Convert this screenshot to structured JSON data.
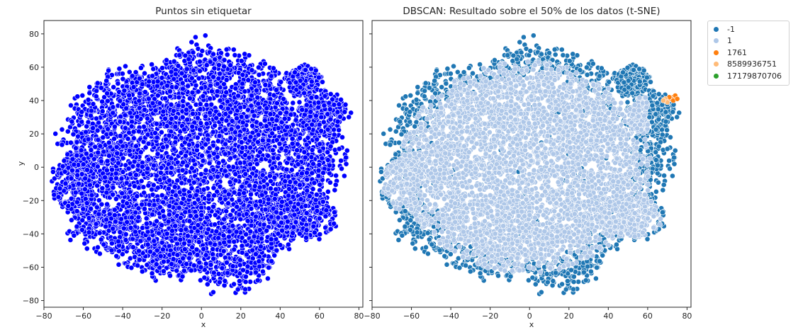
{
  "chart_data": [
    {
      "type": "scatter",
      "title": "Puntos sin etiquetar",
      "xlabel": "x",
      "ylabel": "y",
      "xlim": [
        -80,
        82
      ],
      "ylim": [
        -84,
        88
      ],
      "xticks": [
        -80,
        -60,
        -40,
        -20,
        0,
        20,
        40,
        60,
        80
      ],
      "yticks": [
        -80,
        -60,
        -40,
        -20,
        0,
        20,
        40,
        60,
        80
      ],
      "xtick_labels": [
        "−80",
        "−60",
        "−40",
        "−20",
        "0",
        "20",
        "40",
        "60",
        "80"
      ],
      "ytick_labels": [
        "−80",
        "−60",
        "−40",
        "−20",
        "0",
        "20",
        "40",
        "60",
        "80"
      ],
      "grid": false,
      "series": [
        {
          "color": "#0000ff",
          "regions": [
            {
              "cx": -2,
              "cy": 0,
              "rx": 74,
              "ry": 74,
              "n": 5200
            },
            {
              "cx": 52,
              "cy": 52,
              "rx": 10,
              "ry": 10,
              "n": 200
            },
            {
              "cx": 62,
              "cy": 32,
              "rx": 14,
              "ry": 14,
              "n": 240
            },
            {
              "cx": 52,
              "cy": -30,
              "rx": 18,
              "ry": 16,
              "n": 200
            },
            {
              "cx": -65,
              "cy": -10,
              "rx": 12,
              "ry": 18,
              "n": 200
            }
          ],
          "outliers": [
            [
              5,
              -76
            ],
            [
              6,
              -75
            ],
            [
              -5,
              75
            ],
            [
              -3,
              78
            ],
            [
              2,
              79
            ],
            [
              70,
              11
            ],
            [
              74,
              10
            ]
          ]
        }
      ]
    },
    {
      "type": "scatter",
      "title": "DBSCAN: Resultado sobre el 50% de los datos (t-SNE)",
      "xlabel": "x",
      "ylabel": "",
      "xlim": [
        -80,
        82
      ],
      "ylim": [
        -84,
        88
      ],
      "xticks": [
        -80,
        -60,
        -40,
        -20,
        0,
        20,
        40,
        60,
        80
      ],
      "xtick_labels": [
        "−80",
        "−60",
        "−40",
        "−20",
        "0",
        "20",
        "40",
        "60",
        "80"
      ],
      "grid": false,
      "legend_position": "outside-top-right",
      "legend_entries": [
        "-1",
        "1",
        "1761",
        "8589936751",
        "17179870706"
      ],
      "series": [
        {
          "name": "-1",
          "color": "#1f77b4",
          "role": "edge"
        },
        {
          "name": "1",
          "color": "#aec7e8",
          "role": "core"
        },
        {
          "name": "1761",
          "color": "#ff7f0e",
          "points": [
            [
              73,
              42
            ],
            [
              72,
              41
            ],
            [
              74,
              43
            ],
            [
              71,
              42
            ],
            [
              73,
              40
            ],
            [
              75,
              41
            ]
          ]
        },
        {
          "name": "8589936751",
          "color": "#ffbb78",
          "points": [
            [
              69,
              41
            ],
            [
              70,
              39
            ],
            [
              68,
              40
            ]
          ]
        },
        {
          "name": "17179870706",
          "color": "#2ca02c",
          "points": []
        }
      ]
    }
  ]
}
